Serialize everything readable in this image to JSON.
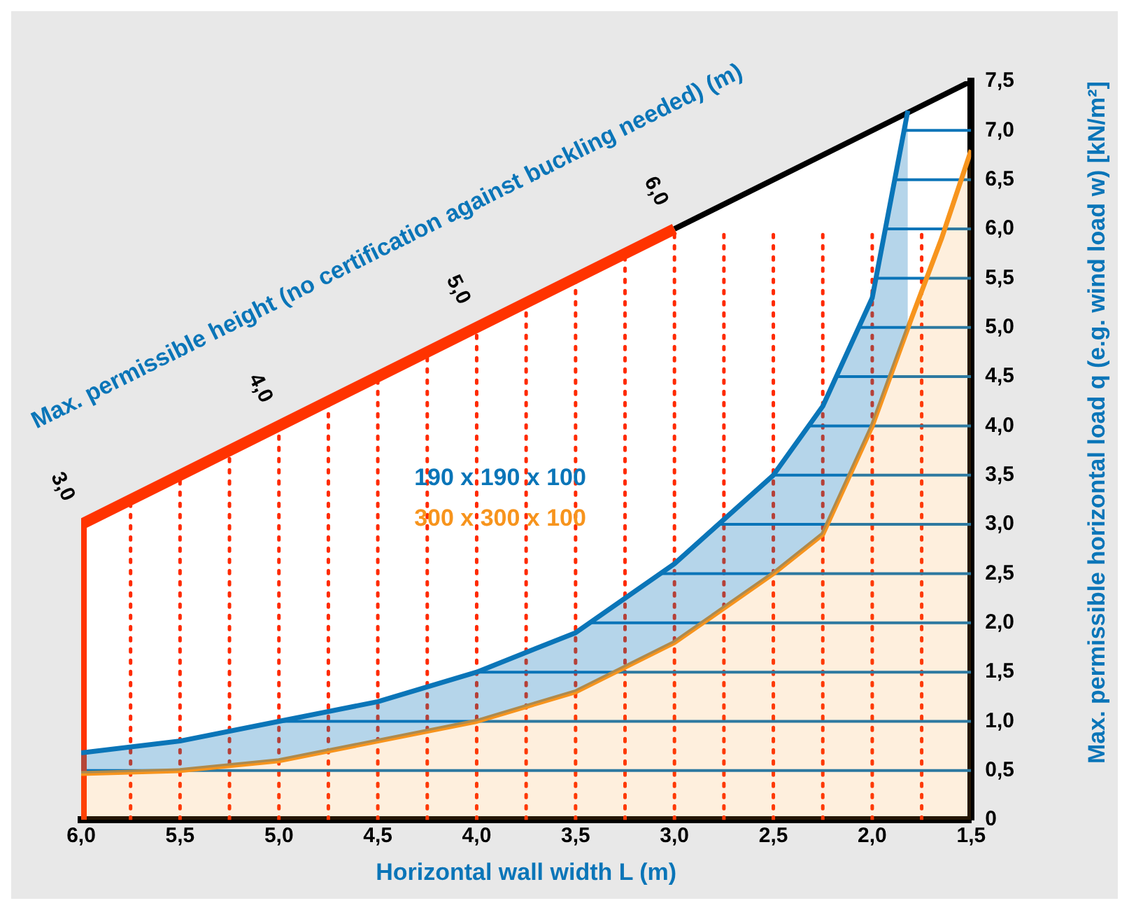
{
  "chart_data": {
    "type": "line",
    "xlabel": "Horizontal wall width L (m)",
    "ylabel": "Max. permissible horizontal load q (e.g. wind load w) [kN/m²]",
    "xlim": [
      6,
      1.5
    ],
    "xticks": [
      {
        "value": 6,
        "label": "6,0"
      },
      {
        "value": 5.5,
        "label": "5,5"
      },
      {
        "value": 5,
        "label": "5,0"
      },
      {
        "value": 4.5,
        "label": "4,5"
      },
      {
        "value": 4,
        "label": "4,0"
      },
      {
        "value": 3.5,
        "label": "3,5"
      },
      {
        "value": 3,
        "label": "3,0"
      },
      {
        "value": 2.5,
        "label": "2,5"
      },
      {
        "value": 2,
        "label": "2,0"
      },
      {
        "value": 1.5,
        "label": "1,5"
      }
    ],
    "ylim": [
      0,
      7.5
    ],
    "yticks": [
      0,
      {
        "value": 0.5,
        "label": "0,5"
      },
      {
        "value": 1,
        "label": "1,0"
      },
      {
        "value": 1.5,
        "label": "1,5"
      },
      {
        "value": 2,
        "label": "2,0"
      },
      {
        "value": 2.5,
        "label": "2,5"
      },
      {
        "value": 3,
        "label": "3,0"
      },
      {
        "value": 3.5,
        "label": "3,5"
      },
      {
        "value": 4,
        "label": "4,0"
      },
      {
        "value": 4.5,
        "label": "4,5"
      },
      {
        "value": 5,
        "label": "5,0"
      },
      {
        "value": 5.5,
        "label": "5,5"
      },
      {
        "value": 6,
        "label": "6,0"
      },
      {
        "value": 6.5,
        "label": "6,5"
      },
      {
        "value": 7,
        "label": "7,0"
      },
      {
        "value": 7.5,
        "label": "7,5"
      }
    ],
    "grid": true,
    "legend": "center",
    "series": [
      {
        "name": "190 x 190 x 100",
        "type": "area",
        "color": "#0a75b8",
        "x": [
          6,
          5.5,
          5,
          4.5,
          4,
          3.5,
          3,
          2.5,
          2.25,
          2,
          1.82
        ],
        "values": [
          0.68,
          0.8,
          1,
          1.2,
          1.5,
          1.9,
          2.6,
          3.5,
          4.2,
          5.3,
          7.2
        ]
      },
      {
        "name": "300 x 300 x 100",
        "type": "area",
        "color": "#f7941d",
        "x": [
          6,
          5.5,
          5,
          4.5,
          4,
          3.5,
          3,
          2.5,
          2.25,
          2,
          1.8,
          1.65,
          1.5
        ],
        "values": [
          0.47,
          0.5,
          0.6,
          0.8,
          1,
          1.3,
          1.8,
          2.5,
          2.9,
          4,
          5.1,
          5.9,
          6.8
        ]
      },
      {
        "color": "#ff3300",
        "x": [
          6,
          6,
          6,
          6,
          3
        ],
        "values": [
          0,
          1,
          2,
          3,
          6
        ]
      },
      {
        "color": "#000000",
        "x": [
          3,
          1.5
        ],
        "values": [
          6,
          7.5
        ]
      }
    ],
    "annotations": [
      "Max. permissible height (no certification against buckling needed) (m)",
      {
        "text": "3,0",
        "x": 6,
        "y": 3
      },
      {
        "text": "4,0",
        "x": 5,
        "y": 4
      },
      {
        "text": "5,0",
        "x": 4,
        "y": 5
      },
      {
        "text": "6,0",
        "x": 3,
        "y": 6
      }
    ]
  }
}
